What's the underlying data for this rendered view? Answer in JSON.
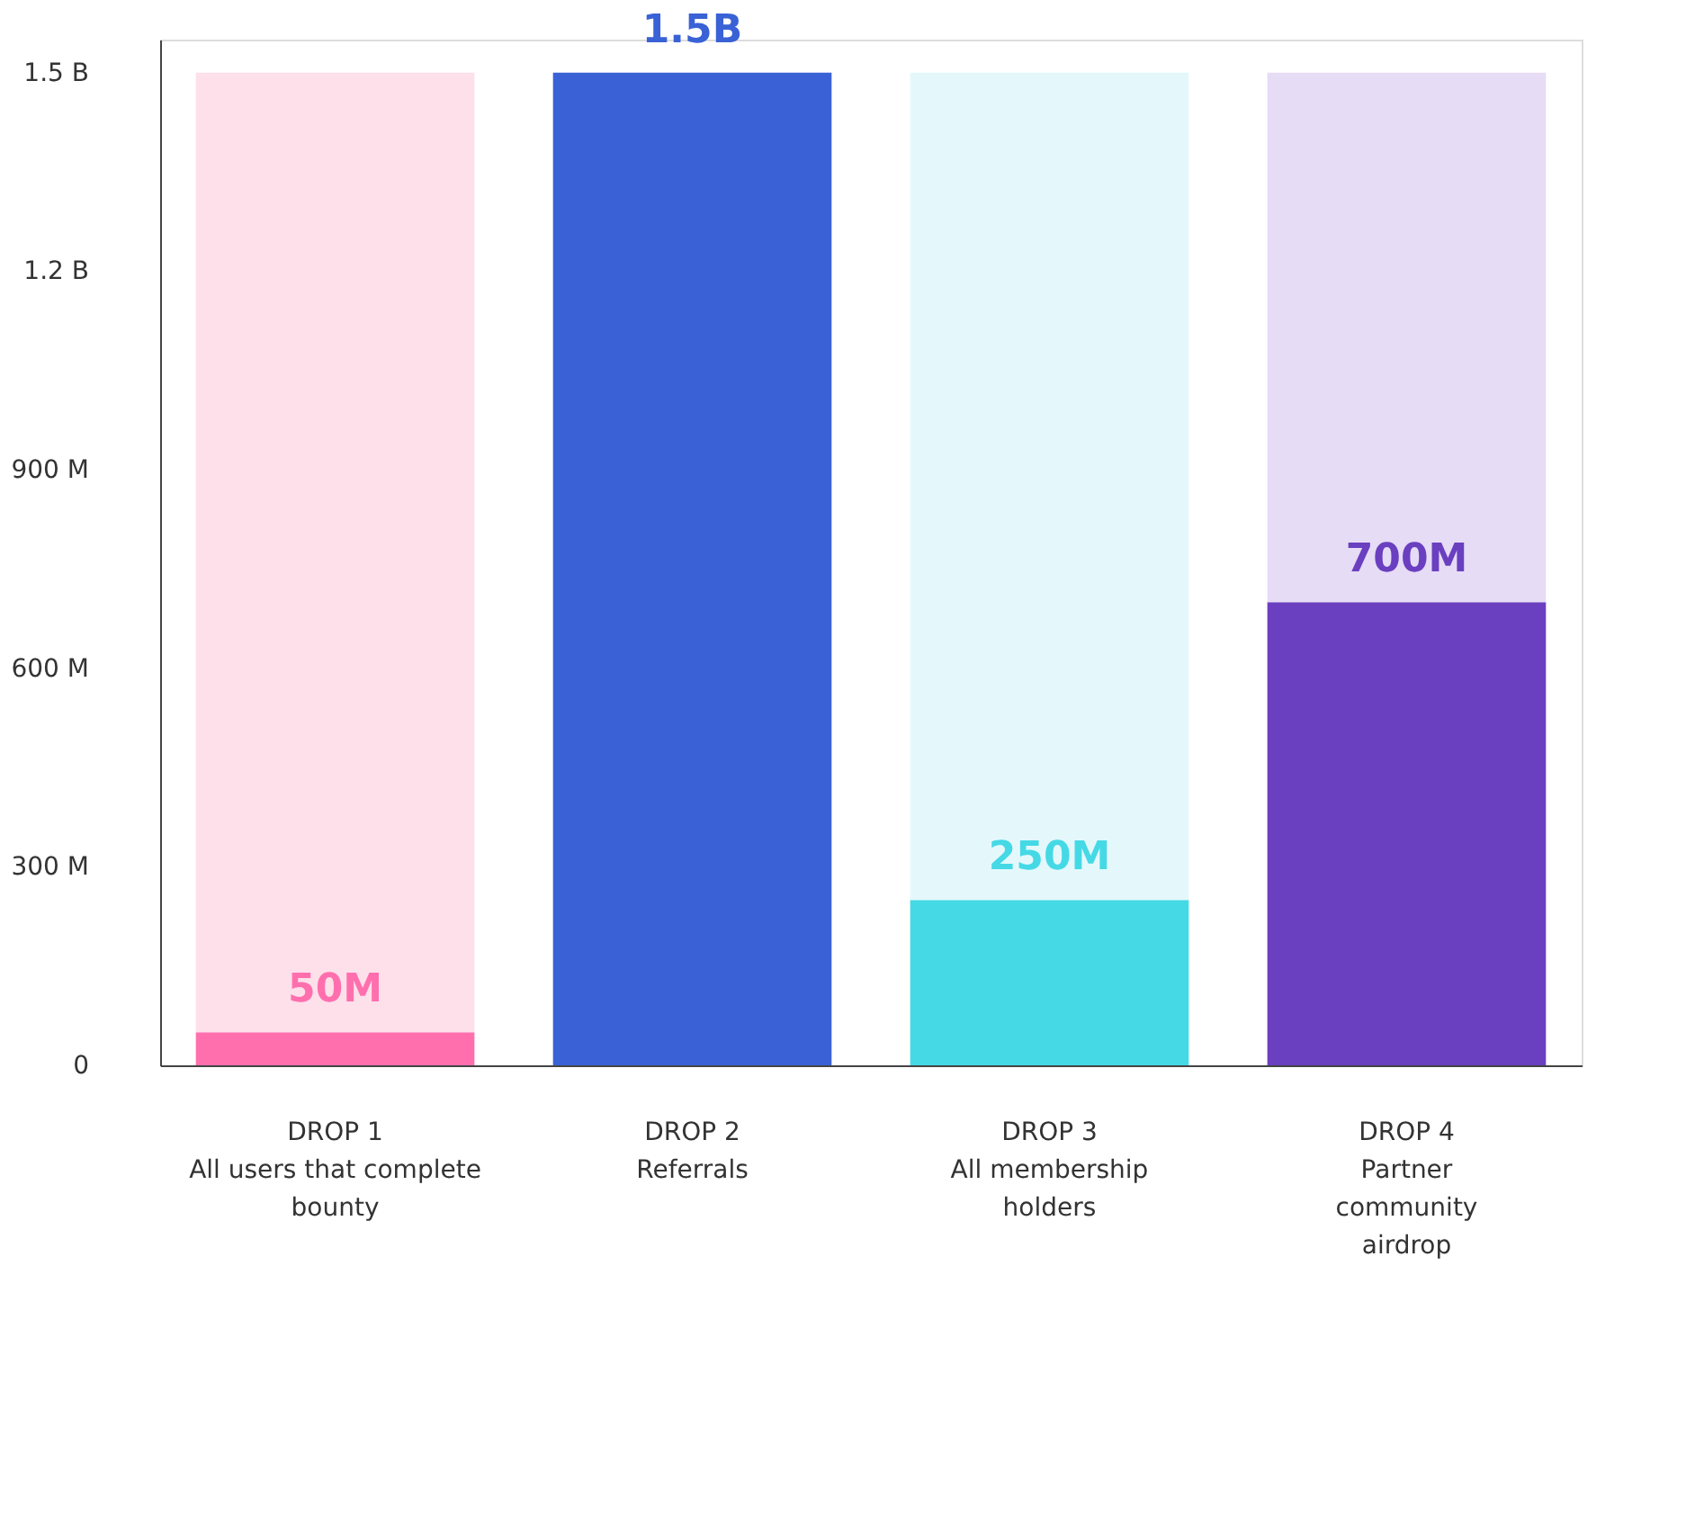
{
  "chart_data": {
    "type": "bar",
    "stacked": true,
    "categories": [
      "DROP 1\nAll users that complete\nbounty",
      "DROP 2\nReferrals",
      "DROP 3\nAll membership\nholders",
      "DROP 4\nPartner\ncommunity\nairdrop"
    ],
    "series": [
      {
        "colors": [
          "#ff6fae",
          "#3a62d6",
          "#45d9e6",
          "#6a3fc0"
        ],
        "values": [
          50000000,
          1500000000,
          250000000,
          700000000
        ],
        "value_labels": [
          "50M",
          "1.5B",
          "250M",
          "700M"
        ]
      },
      {
        "colors": [
          "#fde0ea",
          "#3a62d6",
          "#e4f8fb",
          "#e6dcf5"
        ],
        "values": [
          1450000000,
          0,
          1250000000,
          800000000
        ]
      }
    ],
    "ylim": [
      0,
      1550000000
    ],
    "yticks": [
      {
        "value": 0,
        "label": "0"
      },
      {
        "value": 300000000,
        "label": "300 M"
      },
      {
        "value": 600000000,
        "label": "600 M"
      },
      {
        "value": 900000000,
        "label": "900 M"
      },
      {
        "value": 1200000000,
        "label": "1.2 B"
      },
      {
        "value": 1500000000,
        "label": "1.5 B"
      }
    ],
    "grid": false
  }
}
